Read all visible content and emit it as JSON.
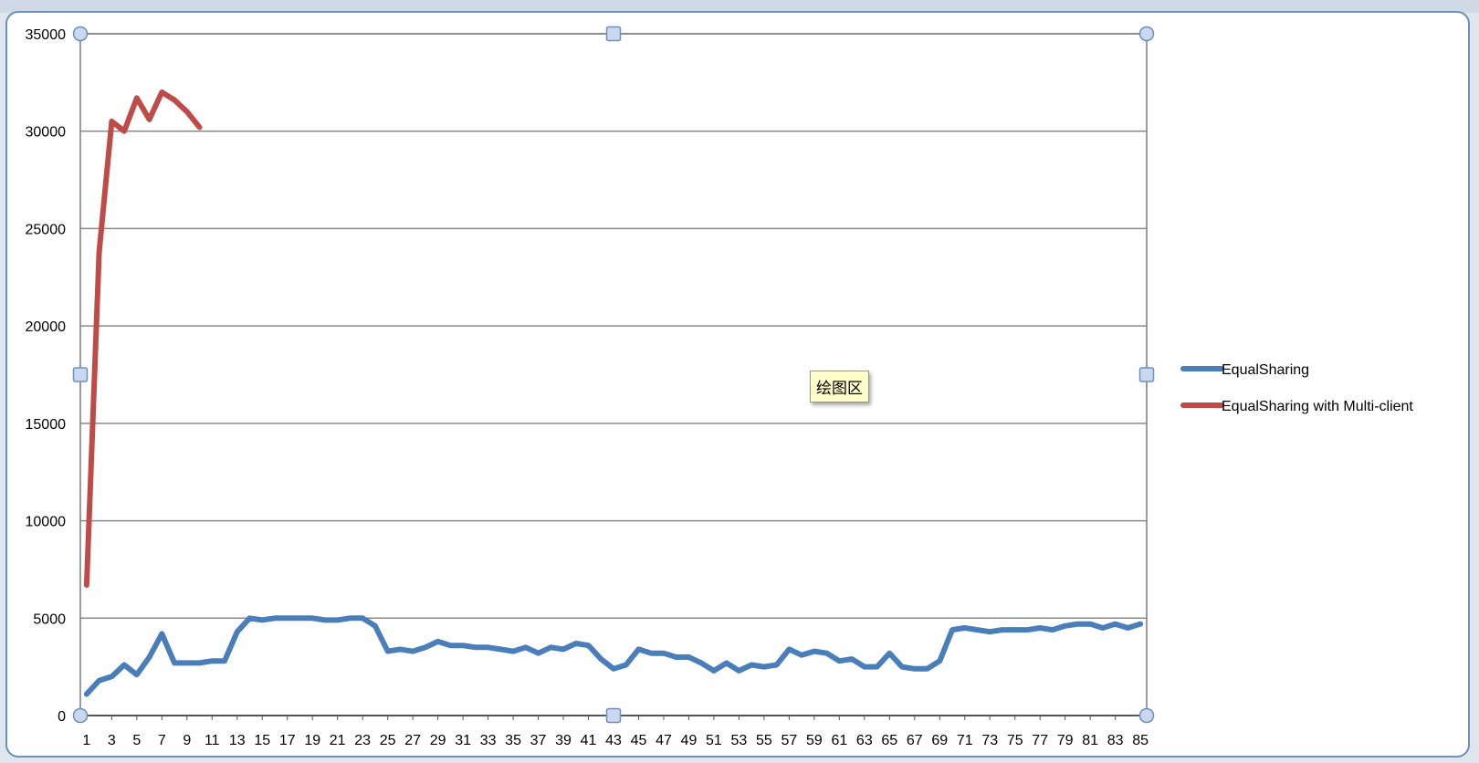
{
  "tooltip": "绘图区",
  "chart_data": {
    "type": "line",
    "title": "",
    "xlabel": "",
    "ylabel": "",
    "ylim": [
      0,
      35000
    ],
    "y_ticks": [
      0,
      5000,
      10000,
      15000,
      20000,
      25000,
      30000,
      35000
    ],
    "x_range": [
      1,
      85
    ],
    "x_tick_labels": [
      1,
      3,
      5,
      7,
      9,
      11,
      13,
      15,
      17,
      19,
      21,
      23,
      25,
      27,
      29,
      31,
      33,
      35,
      37,
      39,
      41,
      43,
      45,
      47,
      49,
      51,
      53,
      55,
      57,
      59,
      61,
      63,
      65,
      67,
      69,
      71,
      73,
      75,
      77,
      79,
      81,
      83,
      85
    ],
    "grid": "horizontal",
    "legend_position": "right",
    "series": [
      {
        "name": "EqualSharing",
        "color": "#4a7ebb",
        "values": [
          1100,
          1800,
          2000,
          2600,
          2100,
          3000,
          4200,
          2700,
          2700,
          2700,
          2800,
          2800,
          4300,
          5000,
          4900,
          5000,
          5000,
          5000,
          5000,
          4900,
          4900,
          5000,
          5000,
          4600,
          3300,
          3400,
          3300,
          3500,
          3800,
          3600,
          3600,
          3500,
          3500,
          3400,
          3300,
          3500,
          3200,
          3500,
          3400,
          3700,
          3600,
          2900,
          2400,
          2600,
          3400,
          3200,
          3200,
          3000,
          3000,
          2700,
          2300,
          2700,
          2300,
          2600,
          2500,
          2600,
          3400,
          3100,
          3300,
          3200,
          2800,
          2900,
          2500,
          2500,
          3200,
          2500,
          2400,
          2400,
          2800,
          4400,
          4500,
          4400,
          4300,
          4400,
          4400,
          4400,
          4500,
          4400,
          4600,
          4700,
          4700,
          4500,
          4700,
          4500,
          4700
        ]
      },
      {
        "name": "EqualSharing with Multi-client",
        "color": "#be4b48",
        "values": [
          6700,
          23800,
          30500,
          30000,
          31700,
          30600,
          32000,
          31600,
          31000,
          30200
        ]
      }
    ]
  }
}
